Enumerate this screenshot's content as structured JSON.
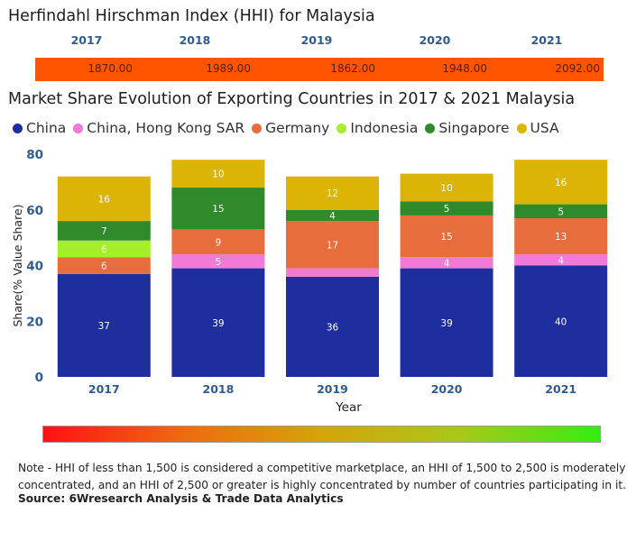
{
  "hhi": {
    "title": "Herfindahl Hirschman Index (HHI) for Malaysia",
    "years": [
      "2017",
      "2018",
      "2019",
      "2020",
      "2021"
    ],
    "values": [
      "1870.00",
      "1989.00",
      "1862.00",
      "1948.00",
      "2092.00"
    ],
    "bar_color": "#ff5500"
  },
  "chart_data": {
    "type": "bar",
    "stacked": true,
    "title": "Market Share Evolution of Exporting Countries in 2017 & 2021 Malaysia",
    "xlabel": "Year",
    "ylabel": "Share(% Value Share)",
    "ylim": [
      0,
      80
    ],
    "yticks": [
      0,
      20,
      40,
      60,
      80
    ],
    "categories": [
      "2017",
      "2018",
      "2019",
      "2020",
      "2021"
    ],
    "legend_position": "top",
    "series": [
      {
        "name": "China",
        "color": "#1f2e9e",
        "values": [
          37,
          39,
          36,
          39,
          40
        ],
        "labels": [
          "37",
          "39",
          "36",
          "39",
          "40"
        ]
      },
      {
        "name": "China, Hong Kong SAR",
        "color": "#f07ad6",
        "values": [
          0,
          5,
          3,
          4,
          4
        ],
        "labels": [
          "",
          "5",
          "",
          "4",
          "4"
        ]
      },
      {
        "name": "Germany",
        "color": "#e86d3c",
        "values": [
          6,
          9,
          17,
          15,
          13
        ],
        "labels": [
          "6",
          "9",
          "17",
          "15",
          "13"
        ]
      },
      {
        "name": "Indonesia",
        "color": "#a4ee2a",
        "values": [
          6,
          0,
          0,
          0,
          0
        ],
        "labels": [
          "6",
          "",
          "",
          "",
          ""
        ]
      },
      {
        "name": "Singapore",
        "color": "#2e8a2a",
        "values": [
          7,
          15,
          4,
          5,
          5
        ],
        "labels": [
          "7",
          "15",
          "4",
          "5",
          "5"
        ]
      },
      {
        "name": "USA",
        "color": "#dbb406",
        "values": [
          16,
          10,
          12,
          10,
          16
        ],
        "labels": [
          "16",
          "10",
          "12",
          "10",
          "16"
        ]
      }
    ]
  },
  "scale_bar": {
    "colors": [
      "#ff1111",
      "#ee6a0f",
      "#d7a30a",
      "#a8c81c",
      "#33ee11"
    ]
  },
  "note": "Note - HHI of less than 1,500 is considered a competitive marketplace, an HHI of 1,500 to 2,500 is moderately concentrated, and an HHI of 2,500 or greater is highly concentrated by number of countries participating in it.",
  "source": "Source: 6Wresearch Analysis & Trade Data Analytics"
}
